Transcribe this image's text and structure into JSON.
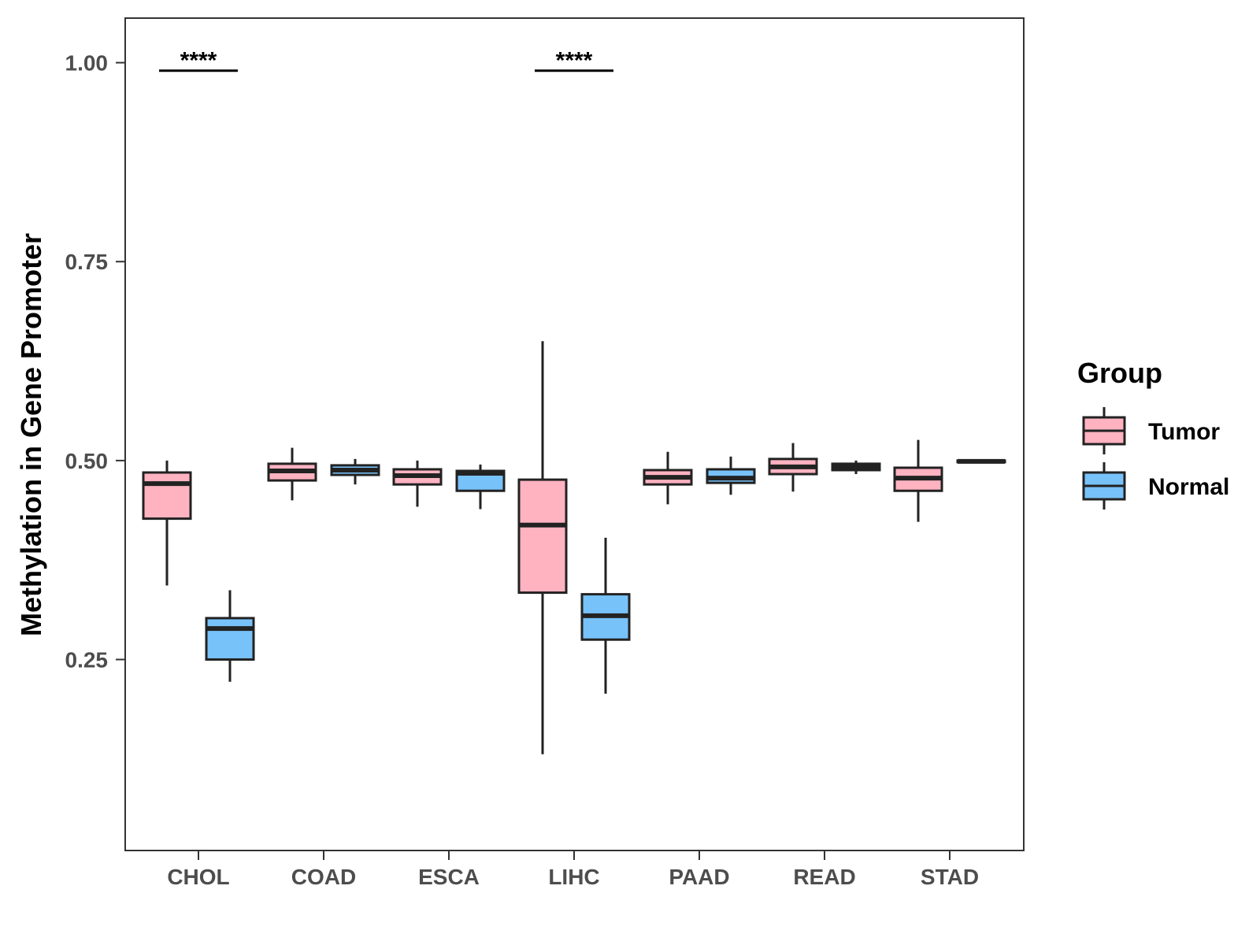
{
  "chart_data": {
    "type": "boxplot",
    "title": "",
    "xlabel": "",
    "ylabel": "Methylation in Gene Promoter",
    "ylim": [
      0.01,
      1.056
    ],
    "yticks": [
      0.25,
      0.5,
      0.75,
      1.0
    ],
    "ytick_labels": [
      "0.25",
      "0.50",
      "0.75",
      "1.00"
    ],
    "categories": [
      "CHOL",
      "COAD",
      "ESCA",
      "LIHC",
      "PAAD",
      "READ",
      "STAD"
    ],
    "legend": {
      "title": "Group",
      "position": "right",
      "entries": [
        {
          "name": "Tumor",
          "color": "#FFB3C1"
        },
        {
          "name": "Normal",
          "color": "#78C2FA"
        }
      ]
    },
    "series": [
      {
        "name": "Tumor",
        "color": "#FFB3C1",
        "boxes": [
          {
            "category": "CHOL",
            "min": 0.343,
            "q1": 0.427,
            "median": 0.471,
            "q3": 0.485,
            "max": 0.5
          },
          {
            "category": "COAD",
            "min": 0.45,
            "q1": 0.475,
            "median": 0.487,
            "q3": 0.496,
            "max": 0.516
          },
          {
            "category": "ESCA",
            "min": 0.442,
            "q1": 0.47,
            "median": 0.481,
            "q3": 0.489,
            "max": 0.5
          },
          {
            "category": "LIHC",
            "min": 0.131,
            "q1": 0.334,
            "median": 0.419,
            "q3": 0.476,
            "max": 0.65
          },
          {
            "category": "PAAD",
            "min": 0.445,
            "q1": 0.47,
            "median": 0.479,
            "q3": 0.488,
            "max": 0.511
          },
          {
            "category": "READ",
            "min": 0.461,
            "q1": 0.483,
            "median": 0.492,
            "q3": 0.502,
            "max": 0.522
          },
          {
            "category": "STAD",
            "min": 0.423,
            "q1": 0.462,
            "median": 0.478,
            "q3": 0.491,
            "max": 0.526
          }
        ]
      },
      {
        "name": "Normal",
        "color": "#78C2FA",
        "boxes": [
          {
            "category": "CHOL",
            "min": 0.222,
            "q1": 0.25,
            "median": 0.289,
            "q3": 0.302,
            "max": 0.337
          },
          {
            "category": "COAD",
            "min": 0.47,
            "q1": 0.482,
            "median": 0.488,
            "q3": 0.494,
            "max": 0.502
          },
          {
            "category": "ESCA",
            "min": 0.439,
            "q1": 0.462,
            "median": 0.484,
            "q3": 0.487,
            "max": 0.495
          },
          {
            "category": "LIHC",
            "min": 0.207,
            "q1": 0.275,
            "median": 0.305,
            "q3": 0.332,
            "max": 0.403
          },
          {
            "category": "PAAD",
            "min": 0.457,
            "q1": 0.472,
            "median": 0.478,
            "q3": 0.489,
            "max": 0.505
          },
          {
            "category": "READ",
            "min": 0.483,
            "q1": 0.488,
            "median": 0.492,
            "q3": 0.496,
            "max": 0.5
          },
          {
            "category": "STAD",
            "min": 0.497,
            "q1": 0.498,
            "median": 0.499,
            "q3": 0.5,
            "max": 0.501
          }
        ]
      }
    ],
    "annotations": [
      {
        "category": "CHOL",
        "text": "****",
        "y": 0.99
      },
      {
        "category": "LIHC",
        "text": "****",
        "y": 0.99
      }
    ],
    "grid": false
  }
}
